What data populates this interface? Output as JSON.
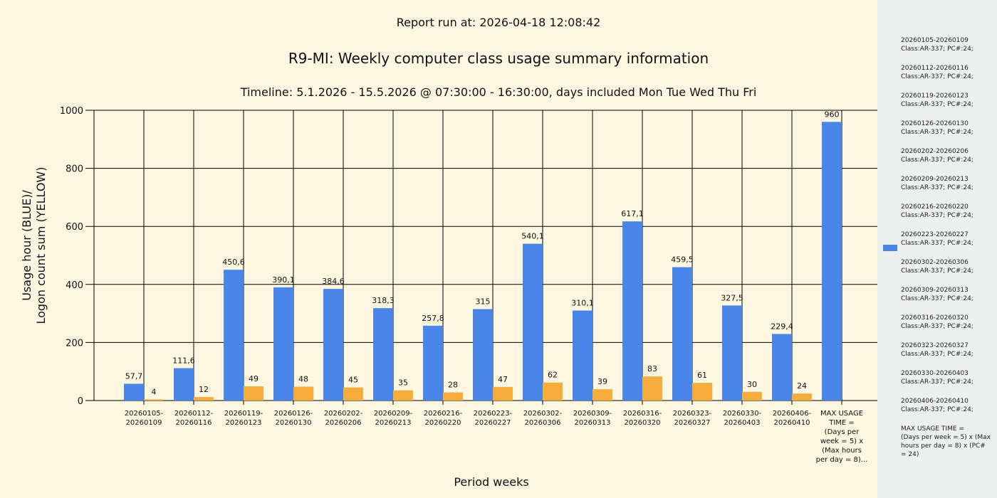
{
  "header": {
    "run_at": "Report run at: 2026-04-18 12:08:42",
    "title": "R9-MI: Weekly computer class usage summary information",
    "timeline": "Timeline:  5.1.2026  - 15.5.2026  @  07:30:00 -  16:30:00, days included Mon Tue Wed Thu Fri"
  },
  "colors": {
    "blue": "#4a86e8",
    "yellow": "#f6ad3c",
    "background": "#fdf7e2",
    "legend_bg": "#eef0f0"
  },
  "chart_data": {
    "type": "bar",
    "title": "R9-MI: Weekly computer class usage summary information",
    "xlabel": "Period weeks",
    "ylabel_line1": "Usage hour (BLUE)/",
    "ylabel_line2": "Logon count sum (YELLOW)",
    "ylim": [
      0,
      1000
    ],
    "yticks": [
      "0",
      "200",
      "400",
      "600",
      "800",
      "1000"
    ],
    "categories": [
      [
        "20260105-",
        "20260109"
      ],
      [
        "20260112-",
        "20260116"
      ],
      [
        "20260119-",
        "20260123"
      ],
      [
        "20260126-",
        "20260130"
      ],
      [
        "20260202-",
        "20260206"
      ],
      [
        "20260209-",
        "20260213"
      ],
      [
        "20260216-",
        "20260220"
      ],
      [
        "20260223-",
        "20260227"
      ],
      [
        "20260302-",
        "20260306"
      ],
      [
        "20260309-",
        "20260313"
      ],
      [
        "20260316-",
        "20260320"
      ],
      [
        "20260323-",
        "20260327"
      ],
      [
        "20260330-",
        "20260403"
      ],
      [
        "20260406-",
        "20260410"
      ],
      [
        "MAX USAGE",
        "TIME =",
        "(Days per",
        "week = 5) x",
        "(Max hours",
        "per day = 8)..."
      ]
    ],
    "series": [
      {
        "name": "Usage hour",
        "color": "#4a86e8",
        "values": [
          57.7,
          111.6,
          450.6,
          390.1,
          384.6,
          318.3,
          257.8,
          315,
          540.1,
          310.1,
          617.1,
          459.5,
          327.5,
          229.4,
          960
        ],
        "labels": [
          "57,7",
          "111,6",
          "450,6",
          "390,1",
          "384,6",
          "318,3",
          "257,8",
          "315",
          "540,1",
          "310,1",
          "617,1",
          "459,5",
          "327,5",
          "229,4",
          "960"
        ]
      },
      {
        "name": "Logon count sum",
        "color": "#f6ad3c",
        "values": [
          4,
          12,
          49,
          48,
          45,
          35,
          28,
          47,
          62,
          39,
          83,
          61,
          30,
          24,
          null
        ],
        "labels": [
          "4",
          "12",
          "49",
          "48",
          "45",
          "35",
          "28",
          "47",
          "62",
          "39",
          "83",
          "61",
          "30",
          "24",
          ""
        ]
      }
    ]
  },
  "legend": {
    "entries": [
      {
        "line1": "20260105-20260109",
        "line2": "Class:AR-337; PC#:24;"
      },
      {
        "line1": "20260112-20260116",
        "line2": "Class:AR-337; PC#:24;"
      },
      {
        "line1": "20260119-20260123",
        "line2": "Class:AR-337; PC#:24;"
      },
      {
        "line1": "20260126-20260130",
        "line2": "Class:AR-337; PC#:24;"
      },
      {
        "line1": "20260202-20260206",
        "line2": "Class:AR-337; PC#:24;"
      },
      {
        "line1": "20260209-20260213",
        "line2": "Class:AR-337; PC#:24;"
      },
      {
        "line1": "20260216-20260220",
        "line2": "Class:AR-337; PC#:24;"
      },
      {
        "line1": "20260223-20260227",
        "line2": "Class:AR-337; PC#:24;"
      },
      {
        "line1": "20260302-20260306",
        "line2": "Class:AR-337; PC#:24;"
      },
      {
        "line1": "20260309-20260313",
        "line2": "Class:AR-337; PC#:24;"
      },
      {
        "line1": "20260316-20260320",
        "line2": "Class:AR-337; PC#:24;"
      },
      {
        "line1": "20260323-20260327",
        "line2": "Class:AR-337; PC#:24;"
      },
      {
        "line1": "20260330-20260403",
        "line2": "Class:AR-337; PC#:24;"
      },
      {
        "line1": "20260406-20260410",
        "line2": "Class:AR-337; PC#:24;"
      }
    ],
    "max_usage": [
      "MAX USAGE TIME =",
      "(Days per week = 5) x (Max",
      "hours per day = 8) x (PC#",
      "= 24)"
    ]
  }
}
